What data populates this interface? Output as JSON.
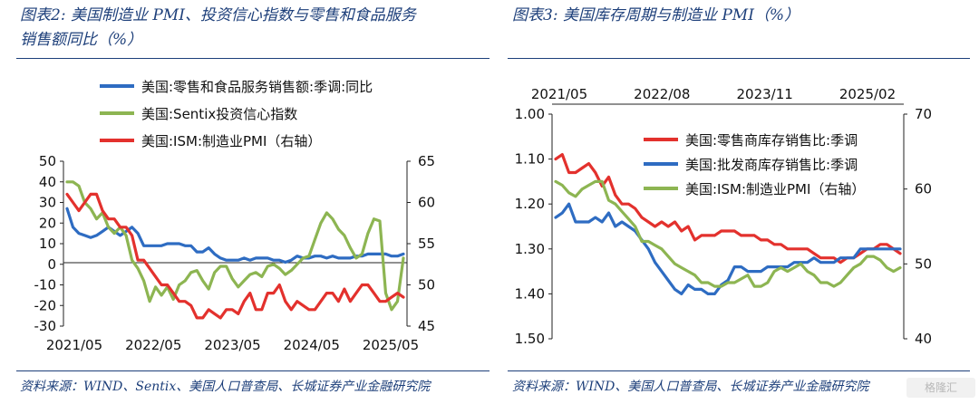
{
  "header": {
    "left_title_line1": "图表2:  美国制造业 PMI、投资信心指数与零售和食品服务",
    "left_title_line2": "销售额同比（%）",
    "right_title_line1": "图表3:  美国库存周期与制造业 PMI（%）"
  },
  "footer": {
    "left_source": "资料来源：WIND、Sentix、美国人口普查局、长城证券产业金融研究院",
    "right_source": "资料来源：WIND、美国人口普查局、长城证券产业金融研究院",
    "watermark": "格隆汇"
  },
  "colors": {
    "blue": "#2e6cc2",
    "green": "#8db552",
    "red": "#e3312d",
    "axis": "#222222",
    "title": "#1d3f7a"
  },
  "chart_data": [
    {
      "type": "line",
      "xlabels": [
        "2021/05",
        "2022/05",
        "2023/05",
        "2024/05",
        "2025/05"
      ],
      "left_axis": {
        "range": [
          -30,
          50
        ],
        "ticks": [
          "50",
          "40",
          "30",
          "20",
          "10",
          "0",
          "-10",
          "-20",
          "-30"
        ]
      },
      "right_axis": {
        "range": [
          45,
          65
        ],
        "ticks": [
          "65",
          "60",
          "55",
          "50",
          "45"
        ]
      },
      "legend": [
        {
          "label": "美国:零售和食品服务销售额:季调:同比",
          "color": "blue"
        },
        {
          "label": "美国:Sentix投资信心指数",
          "color": "green"
        },
        {
          "label": "美国:ISM:制造业PMI（右轴）",
          "color": "red"
        }
      ],
      "series": [
        {
          "name": "美国:零售和食品服务销售额:季调:同比",
          "axis": "left",
          "color": "blue",
          "x_start": "2021-05",
          "values": [
            27,
            18,
            15,
            14,
            13,
            14,
            16,
            18,
            16,
            14,
            16,
            18,
            15,
            9,
            9,
            9,
            9,
            10,
            10,
            10,
            9,
            9,
            6,
            6,
            8,
            5,
            3,
            2,
            2,
            2,
            3,
            2,
            3,
            3,
            3,
            2,
            2,
            1,
            2,
            4,
            3,
            3,
            4,
            4,
            3,
            4,
            3,
            3,
            3,
            4,
            4,
            5,
            5,
            5,
            5,
            4,
            4,
            5
          ]
        },
        {
          "name": "美国:Sentix投资信心指数",
          "axis": "left",
          "color": "green",
          "x_start": "2021-05",
          "values": [
            40,
            40,
            38,
            30,
            27,
            22,
            25,
            18,
            15,
            18,
            14,
            2,
            -2,
            -8,
            -18,
            -11,
            -15,
            -11,
            -17,
            -10,
            -8,
            -4,
            -3,
            -8,
            -12,
            -4,
            -1,
            -1,
            -7,
            -11,
            -8,
            -5,
            -4,
            -6,
            -1,
            0,
            -2,
            -5,
            -3,
            0,
            3,
            4,
            12,
            20,
            25,
            22,
            17,
            14,
            8,
            3,
            5,
            15,
            22,
            21,
            -14,
            -22,
            -18,
            3
          ]
        },
        {
          "name": "美国:ISM:制造业PMI（右轴）",
          "axis": "right",
          "color": "red",
          "x_start": "2021-05",
          "values": [
            61,
            60,
            59,
            60,
            61,
            61,
            59,
            58,
            58,
            57,
            57,
            56,
            53,
            53,
            52,
            51,
            50,
            50,
            49,
            48,
            48,
            47.5,
            46,
            46,
            47,
            46.5,
            46,
            47,
            47,
            46.5,
            48,
            49,
            47,
            47,
            49,
            49,
            50,
            48,
            47,
            48,
            47.5,
            47,
            47,
            48,
            49,
            49,
            48,
            49.5,
            48,
            49,
            50,
            50,
            49,
            48,
            48,
            48.5,
            49,
            48.5
          ]
        }
      ]
    },
    {
      "type": "line",
      "xlabels": [
        "2021/05",
        "2022/08",
        "2023/11",
        "2025/02"
      ],
      "left_axis": {
        "range": [
          1.0,
          1.5
        ],
        "inverted": true,
        "ticks": [
          "1.00",
          "1.10",
          "1.20",
          "1.30",
          "1.40",
          "1.50"
        ]
      },
      "right_axis": {
        "range": [
          40,
          70
        ],
        "ticks": [
          "70",
          "60",
          "50",
          "40"
        ]
      },
      "legend": [
        {
          "label": "美国:零售商库存销售比:季调",
          "color": "red"
        },
        {
          "label": "美国:批发商库存销售比:季调",
          "color": "blue"
        },
        {
          "label": "美国:ISM:制造业PMI（右轴）",
          "color": "green"
        }
      ],
      "series": [
        {
          "name": "美国:零售商库存销售比:季调",
          "axis": "left",
          "color": "red",
          "x_start": "2021-05",
          "values": [
            1.1,
            1.09,
            1.13,
            1.13,
            1.12,
            1.11,
            1.13,
            1.16,
            1.14,
            1.18,
            1.2,
            1.2,
            1.21,
            1.23,
            1.24,
            1.25,
            1.24,
            1.25,
            1.24,
            1.26,
            1.25,
            1.28,
            1.27,
            1.27,
            1.27,
            1.26,
            1.26,
            1.26,
            1.27,
            1.27,
            1.27,
            1.28,
            1.28,
            1.29,
            1.29,
            1.3,
            1.3,
            1.3,
            1.3,
            1.31,
            1.32,
            1.32,
            1.32,
            1.33,
            1.32,
            1.32,
            1.31,
            1.3,
            1.3,
            1.29,
            1.29,
            1.3,
            1.31
          ]
        },
        {
          "name": "美国:批发商库存销售比:季调",
          "axis": "left",
          "color": "blue",
          "x_start": "2021-05",
          "values": [
            1.23,
            1.22,
            1.2,
            1.24,
            1.24,
            1.24,
            1.23,
            1.24,
            1.22,
            1.25,
            1.24,
            1.25,
            1.26,
            1.28,
            1.3,
            1.33,
            1.35,
            1.37,
            1.39,
            1.4,
            1.38,
            1.39,
            1.39,
            1.4,
            1.4,
            1.38,
            1.37,
            1.34,
            1.34,
            1.35,
            1.35,
            1.35,
            1.34,
            1.34,
            1.34,
            1.34,
            1.33,
            1.33,
            1.33,
            1.32,
            1.33,
            1.33,
            1.33,
            1.32,
            1.32,
            1.32,
            1.3,
            1.3,
            1.3,
            1.3,
            1.3,
            1.3,
            1.3
          ]
        },
        {
          "name": "美国:ISM:制造业PMI（右轴）",
          "axis": "right",
          "color": "green",
          "x_start": "2021-05",
          "values": [
            61,
            60.5,
            59.5,
            59,
            60,
            60.5,
            61,
            61,
            58.5,
            58,
            57,
            56,
            55,
            53,
            53,
            52.5,
            52,
            51,
            50,
            49.5,
            49,
            48.5,
            47.5,
            47.5,
            47,
            47,
            47.5,
            47.5,
            48,
            48.5,
            47,
            47,
            47.5,
            49,
            49.5,
            49,
            49.5,
            50,
            49,
            48.5,
            47.5,
            47.5,
            47,
            47.5,
            48.5,
            49.5,
            50,
            51,
            51,
            50.5,
            49.5,
            49,
            49.5
          ]
        }
      ]
    }
  ]
}
